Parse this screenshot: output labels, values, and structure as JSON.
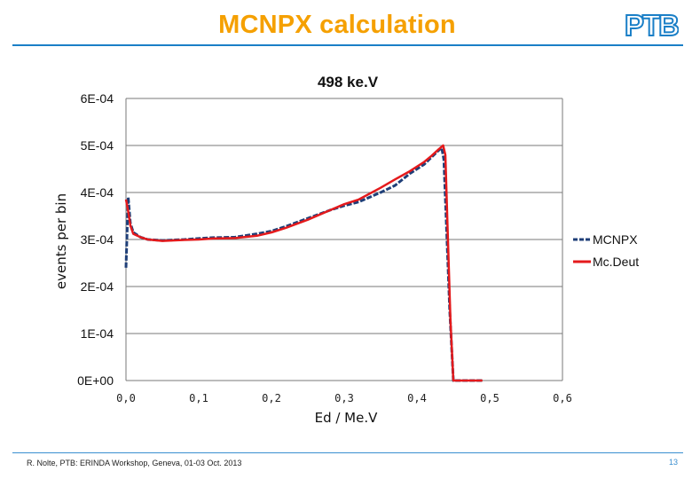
{
  "slide": {
    "title": "MCNPX calculation",
    "logo_text": "PTB",
    "footer": "R. Nolte, PTB: ERINDA Workshop, Geneva, 01-03 Oct. 2013",
    "page_number": "13"
  },
  "colors": {
    "title": "#f5a000",
    "rule": "#1a7fc7",
    "mcnpx": "#1f3f78",
    "mcdeut": "#e41a1c"
  },
  "chart_data": {
    "type": "line",
    "title": "498 ke.V",
    "xlabel": "Ed / Me.V",
    "ylabel": "events per bin",
    "xlim": [
      0,
      0.6
    ],
    "ylim": [
      0,
      0.0006
    ],
    "xticks": [
      "0,0",
      "0,1",
      "0,2",
      "0,3",
      "0,4",
      "0,5",
      "0,6"
    ],
    "yticks": [
      "0E+00",
      "1E-04",
      "2E-04",
      "3E-04",
      "4E-04",
      "5E-04",
      "6E-04"
    ],
    "grid": "horizontal",
    "legend_position": "right",
    "series": [
      {
        "name": "MCNPX",
        "color": "#1f3f78",
        "style": "dashed",
        "x": [
          0.0,
          0.003,
          0.006,
          0.01,
          0.02,
          0.03,
          0.05,
          0.08,
          0.1,
          0.12,
          0.15,
          0.18,
          0.2,
          0.22,
          0.25,
          0.28,
          0.3,
          0.32,
          0.35,
          0.37,
          0.39,
          0.41,
          0.42,
          0.43,
          0.434,
          0.437,
          0.44,
          0.445,
          0.45,
          0.46,
          0.48,
          0.49
        ],
        "y": [
          0.00024,
          0.00039,
          0.000335,
          0.000315,
          0.000305,
          0.0003,
          0.000298,
          0.0003,
          0.000302,
          0.000304,
          0.000305,
          0.000312,
          0.000318,
          0.000328,
          0.000345,
          0.000362,
          0.000372,
          0.00038,
          0.0004,
          0.000415,
          0.00044,
          0.00046,
          0.000475,
          0.00049,
          0.000495,
          0.00047,
          0.00035,
          0.00015,
          0.0,
          0.0,
          0.0,
          0.0
        ]
      },
      {
        "name": "Mc.Deut",
        "color": "#e41a1c",
        "style": "solid",
        "x": [
          0.0,
          0.003,
          0.006,
          0.01,
          0.02,
          0.03,
          0.05,
          0.08,
          0.1,
          0.12,
          0.15,
          0.18,
          0.2,
          0.22,
          0.25,
          0.28,
          0.3,
          0.32,
          0.35,
          0.37,
          0.39,
          0.41,
          0.42,
          0.43,
          0.436,
          0.439,
          0.442,
          0.446,
          0.45,
          0.46,
          0.48,
          0.49
        ],
        "y": [
          0.000385,
          0.00036,
          0.00033,
          0.000312,
          0.000305,
          0.0003,
          0.000297,
          0.000299,
          0.0003,
          0.000302,
          0.000303,
          0.000308,
          0.000315,
          0.000325,
          0.000342,
          0.000362,
          0.000375,
          0.000385,
          0.00041,
          0.000428,
          0.000445,
          0.000465,
          0.000478,
          0.000492,
          0.0005,
          0.00048,
          0.00033,
          0.00013,
          0.0,
          0.0,
          0.0,
          0.0
        ]
      }
    ]
  }
}
